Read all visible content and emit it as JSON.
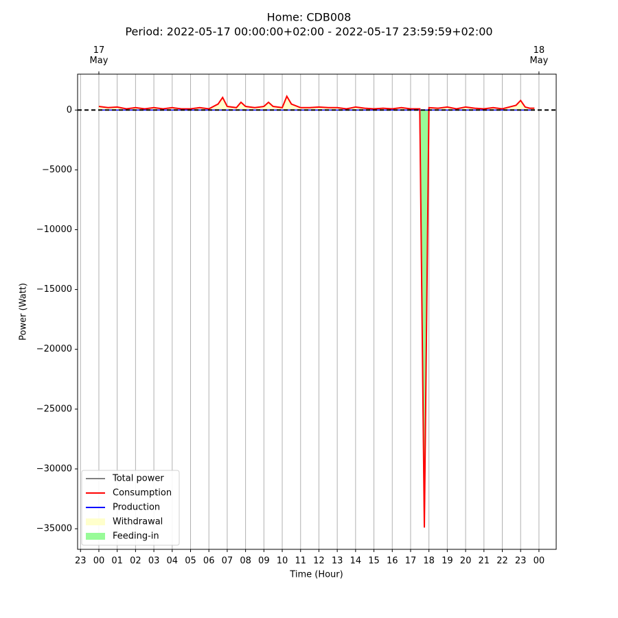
{
  "chart_data": {
    "type": "line",
    "title": "Home: CDB008",
    "subtitle": "Period: 2022-05-17 00:00:00+02:00 - 2022-05-17 23:59:59+02:00",
    "xlabel": "Time (Hour)",
    "ylabel": "Power (Watt)",
    "x": [
      0,
      0.5,
      1,
      1.5,
      2,
      2.5,
      3,
      3.5,
      4,
      4.5,
      5,
      5.5,
      6,
      6.5,
      6.75,
      7,
      7.5,
      7.75,
      8,
      8.5,
      9,
      9.25,
      9.5,
      10,
      10.25,
      10.5,
      11,
      11.5,
      12,
      12.5,
      13,
      13.5,
      14,
      14.5,
      15,
      15.5,
      16,
      16.5,
      17,
      17.25,
      17.5,
      17.75,
      18,
      18.5,
      19,
      19.5,
      20,
      20.5,
      21,
      21.5,
      22,
      22.5,
      22.75,
      23,
      23.25,
      23.5,
      23.75
    ],
    "series": [
      {
        "name": "Total power",
        "color": "#808080",
        "values": [
          300,
          200,
          250,
          100,
          200,
          100,
          200,
          100,
          200,
          100,
          100,
          200,
          100,
          500,
          1050,
          300,
          200,
          650,
          300,
          200,
          300,
          650,
          300,
          200,
          1150,
          500,
          200,
          200,
          250,
          200,
          200,
          100,
          250,
          150,
          100,
          150,
          100,
          200,
          100,
          100,
          100,
          -34900,
          200,
          150,
          250,
          100,
          250,
          150,
          100,
          200,
          100,
          300,
          400,
          800,
          250,
          150,
          150
        ]
      },
      {
        "name": "Consumption",
        "color": "#ff0000",
        "values": [
          300,
          200,
          250,
          100,
          200,
          100,
          200,
          100,
          200,
          100,
          100,
          200,
          100,
          500,
          1050,
          300,
          200,
          650,
          300,
          200,
          300,
          650,
          300,
          200,
          1150,
          500,
          200,
          200,
          250,
          200,
          200,
          100,
          250,
          150,
          100,
          150,
          100,
          200,
          100,
          100,
          100,
          -34900,
          200,
          150,
          250,
          100,
          250,
          150,
          100,
          200,
          100,
          300,
          400,
          800,
          250,
          150,
          150
        ]
      },
      {
        "name": "Production",
        "color": "#0000ff",
        "values": [
          0,
          0,
          0,
          0,
          0,
          0,
          0,
          0,
          0,
          0,
          0,
          0,
          0,
          0,
          0,
          0,
          0,
          0,
          0,
          0,
          0,
          0,
          0,
          0,
          0,
          0,
          0,
          0,
          0,
          0,
          0,
          0,
          0,
          0,
          0,
          0,
          0,
          0,
          0,
          0,
          0,
          0,
          0,
          0,
          0,
          0,
          0,
          0,
          0,
          0,
          0,
          0,
          0,
          0,
          0,
          0,
          0
        ]
      }
    ],
    "areas": [
      {
        "name": "Withdrawal",
        "color": "#ffffcc",
        "sign": "positive"
      },
      {
        "name": "Feeding-in",
        "color": "#98fb98",
        "sign": "negative"
      }
    ],
    "hline": 0,
    "xlim": [
      -1.16,
      24.94
    ],
    "ylim": [
      -36720,
      3000
    ],
    "xticks": [
      {
        "value": -1,
        "label": "23"
      },
      {
        "value": 0,
        "label": "00"
      },
      {
        "value": 1,
        "label": "01"
      },
      {
        "value": 2,
        "label": "02"
      },
      {
        "value": 3,
        "label": "03"
      },
      {
        "value": 4,
        "label": "04"
      },
      {
        "value": 5,
        "label": "05"
      },
      {
        "value": 6,
        "label": "06"
      },
      {
        "value": 7,
        "label": "07"
      },
      {
        "value": 8,
        "label": "08"
      },
      {
        "value": 9,
        "label": "09"
      },
      {
        "value": 10,
        "label": "10"
      },
      {
        "value": 11,
        "label": "11"
      },
      {
        "value": 12,
        "label": "12"
      },
      {
        "value": 13,
        "label": "13"
      },
      {
        "value": 14,
        "label": "14"
      },
      {
        "value": 15,
        "label": "15"
      },
      {
        "value": 16,
        "label": "16"
      },
      {
        "value": 17,
        "label": "17"
      },
      {
        "value": 18,
        "label": "18"
      },
      {
        "value": 19,
        "label": "19"
      },
      {
        "value": 20,
        "label": "20"
      },
      {
        "value": 21,
        "label": "21"
      },
      {
        "value": 22,
        "label": "22"
      },
      {
        "value": 23,
        "label": "23"
      },
      {
        "value": 24,
        "label": "00"
      }
    ],
    "top_xticks": [
      {
        "value": 0,
        "label": "17\nMay"
      },
      {
        "value": 24,
        "label": "18\nMay"
      }
    ],
    "yticks": [
      {
        "value": -35000,
        "label": "−35000"
      },
      {
        "value": -30000,
        "label": "−30000"
      },
      {
        "value": -25000,
        "label": "−25000"
      },
      {
        "value": -20000,
        "label": "−20000"
      },
      {
        "value": -15000,
        "label": "−15000"
      },
      {
        "value": -10000,
        "label": "−10000"
      },
      {
        "value": -5000,
        "label": "−5000"
      },
      0
    ],
    "grid": "x",
    "legend": "lower left"
  }
}
